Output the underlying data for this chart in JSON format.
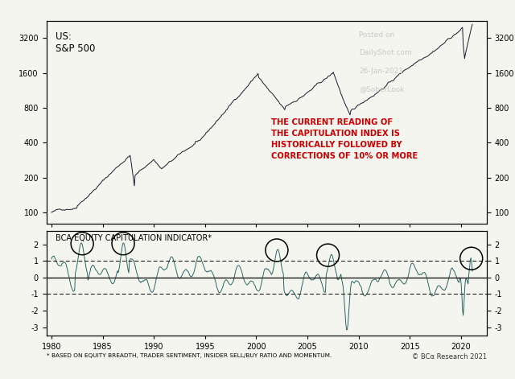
{
  "title_top": "US:\nS&P 500",
  "title_bottom": "BCA EQUITY CAPITULATION INDICATOR*",
  "footnote": "* BASED ON EQUITY BREADTH, TRADER SENTIMENT, INSIDER SELL/BUY RATIO AND MOMENTUM.",
  "copyright": "© BCα Research 2021",
  "watermark_line1": "Posted on",
  "watermark_line2": "DailyShot.com",
  "watermark_line3": "26-Jan-2021",
  "watermark_line4": "@SoberLook",
  "annotation_text": "THE CURRENT READING OF\nTHE CAPITULATION INDEX IS\nHISTORICALLY FOLLOWED BY\nCORRECTIONS OF 10% OR MORE",
  "annotation_color": "#cc0000",
  "sp500_color": "#1a1a2e",
  "cap_color": "#1a5c5c",
  "background_color": "#f5f5f0",
  "sp500_yticks": [
    100,
    200,
    400,
    800,
    1600,
    3200
  ],
  "cap_yticks": [
    -3,
    -2,
    -1,
    0,
    1,
    2
  ],
  "xticks": [
    1980,
    1985,
    1990,
    1995,
    2000,
    2005,
    2010,
    2015,
    2020
  ],
  "xlim": [
    1979.5,
    2022.5
  ],
  "sp500_ylim": [
    80,
    4500
  ],
  "cap_ylim": [
    -3.5,
    2.8
  ],
  "circle_years": [
    1983,
    1987,
    2002,
    2007,
    2021
  ],
  "circle_values": [
    2.05,
    2.05,
    1.65,
    1.35,
    1.15
  ]
}
